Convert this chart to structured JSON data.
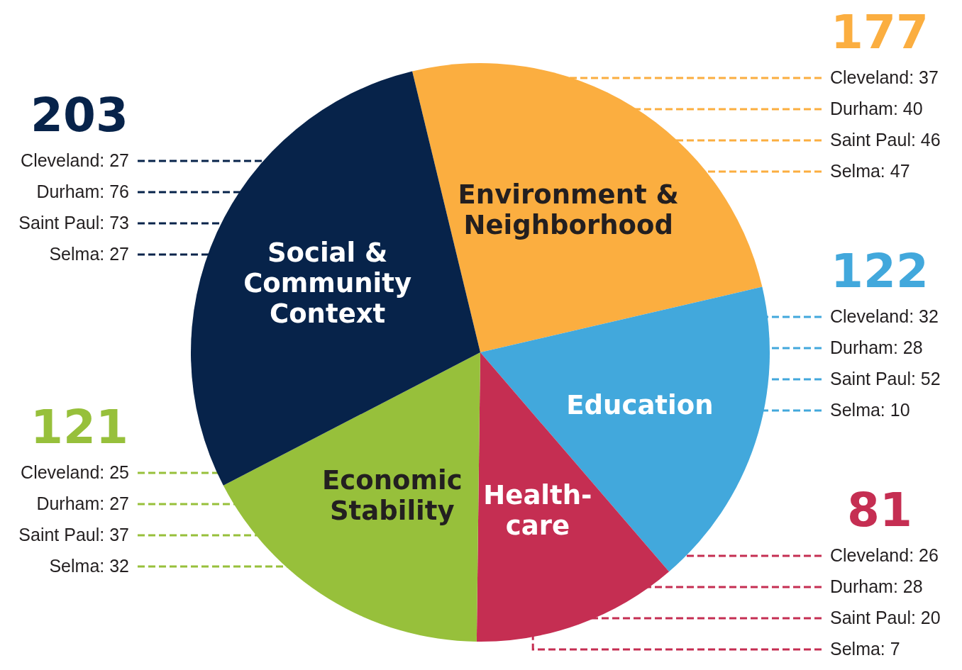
{
  "chart_data": {
    "type": "pie",
    "categories": [
      "Environment & Neighborhood",
      "Education",
      "Health-care",
      "Economic Stability",
      "Social & Community Context"
    ],
    "values": [
      177,
      122,
      81,
      121,
      203
    ],
    "colors": [
      "#fbae40",
      "#42a8dc",
      "#c52e52",
      "#97c03b",
      "#07234a"
    ],
    "data_labels": true,
    "annotations": [
      "Cleveland: 37",
      "Durham: 40",
      "Saint Paul: 46",
      "Selma: 47",
      "Cleveland: 32",
      "Durham: 28",
      "Saint Paul: 52",
      "Selma: 10",
      "Cleveland: 26",
      "Durham: 28",
      "Saint Paul: 20",
      "Selma: 7",
      "Cleveland: 25",
      "Durham: 27",
      "Saint Paul: 37",
      "Selma: 32",
      "Cleveland: 27",
      "Durham: 76",
      "Saint Paul: 73",
      "Selma: 27"
    ]
  }
}
